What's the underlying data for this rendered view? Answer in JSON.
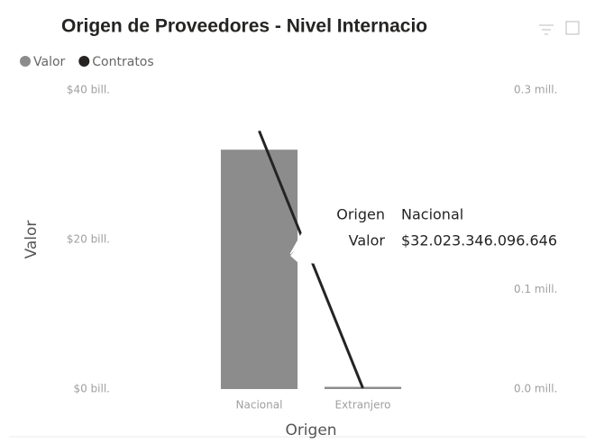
{
  "chart_data": {
    "type": "combo",
    "title": "Origen de Proveedores - Nivel Internacio",
    "categories": [
      "Nacional",
      "Extranjero"
    ],
    "series": [
      {
        "name": "Valor",
        "type": "bar",
        "color": "#8c8c8c",
        "values": [
          32.023346096646,
          0.3
        ]
      },
      {
        "name": "Contratos",
        "type": "line",
        "axis": "y2",
        "color": "#252423",
        "values": [
          0.259,
          0.001
        ]
      }
    ],
    "ylim": [
      0,
      40
    ],
    "yticks": [
      {
        "value": 0,
        "label": "$0 bill."
      },
      {
        "value": 20,
        "label": "$20 bill."
      },
      {
        "value": 40,
        "label": "$40 bill."
      }
    ],
    "y2lim": [
      0,
      0.3
    ],
    "y2ticks": [
      {
        "value": 0,
        "label": "0.0 mill."
      },
      {
        "value": 0.1,
        "label": "0.1 mill."
      },
      {
        "value": 0.3,
        "label": "0.3 mill."
      }
    ],
    "ylabel": "Valor",
    "xlabel": "Origen",
    "legend": "top-left",
    "tooltip": {
      "rows": [
        {
          "label": "Origen",
          "value": "Nacional"
        },
        {
          "label": "Valor",
          "value": "$32.023.346.096.646"
        }
      ]
    }
  }
}
